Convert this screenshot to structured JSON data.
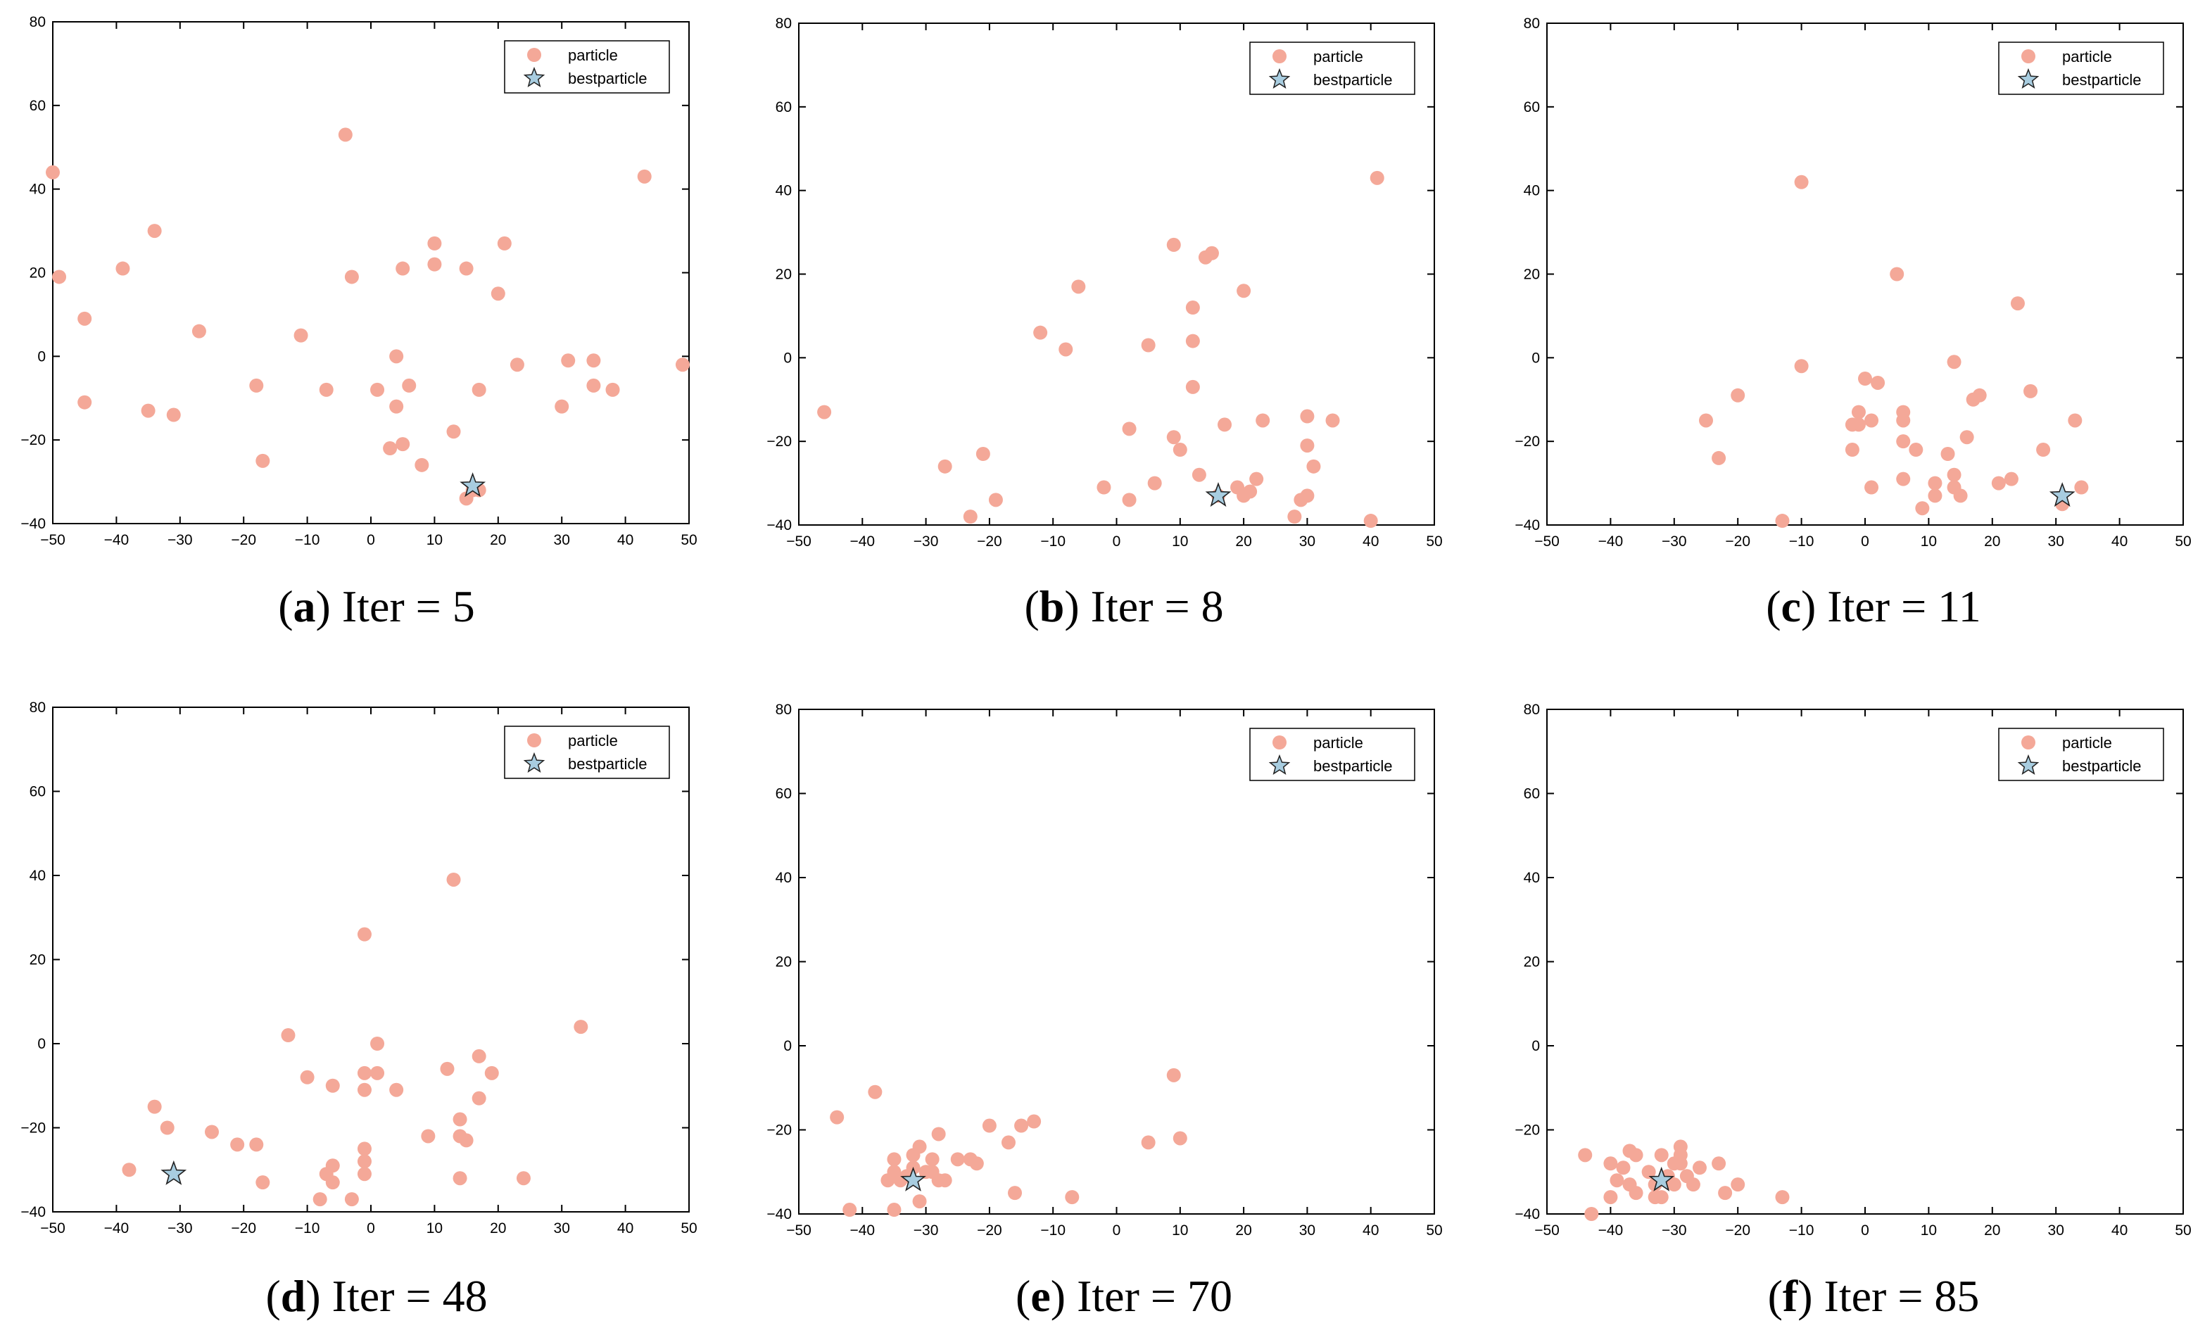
{
  "colors": {
    "particle": "#f4a898",
    "best": "#a8cde0",
    "best_stroke": "#222222",
    "axis": "#000000"
  },
  "legend": {
    "particle": "particle",
    "best": "bestparticle"
  },
  "chart_data": [
    {
      "type": "scatter",
      "panel": "a",
      "title": "Iter = 5",
      "xlim": [
        -50,
        50
      ],
      "ylim": [
        -40,
        80
      ],
      "xticks": [
        "−50",
        "−40",
        "−30",
        "−20",
        "−10",
        "0",
        "10",
        "20",
        "30",
        "40",
        "50"
      ],
      "yticks": [
        "−40",
        "−20",
        "0",
        "20",
        "40",
        "60",
        "80"
      ],
      "series": [
        {
          "name": "particle",
          "points": [
            [
              -50,
              44
            ],
            [
              -49,
              19
            ],
            [
              -45,
              9
            ],
            [
              -45,
              -11
            ],
            [
              -35,
              -13
            ],
            [
              -34,
              30
            ],
            [
              -39,
              21
            ],
            [
              -31,
              -14
            ],
            [
              -27,
              6
            ],
            [
              -18,
              -7
            ],
            [
              -17,
              -25
            ],
            [
              -11,
              5
            ],
            [
              -7,
              -8
            ],
            [
              -4,
              53
            ],
            [
              -3,
              19
            ],
            [
              1,
              -8
            ],
            [
              3,
              -22
            ],
            [
              4,
              0
            ],
            [
              4,
              -12
            ],
            [
              5,
              21
            ],
            [
              5,
              -21
            ],
            [
              6,
              -7
            ],
            [
              8,
              -26
            ],
            [
              10,
              22
            ],
            [
              10,
              27
            ],
            [
              13,
              -18
            ],
            [
              15,
              21
            ],
            [
              15,
              -34
            ],
            [
              16,
              -32
            ],
            [
              17,
              -32
            ],
            [
              17,
              -8
            ],
            [
              20,
              15
            ],
            [
              21,
              27
            ],
            [
              23,
              -2
            ],
            [
              30,
              -12
            ],
            [
              31,
              -1
            ],
            [
              35,
              -1
            ],
            [
              35,
              -7
            ],
            [
              38,
              -8
            ],
            [
              43,
              43
            ],
            [
              49,
              -2
            ]
          ]
        },
        {
          "name": "bestparticle",
          "points": [
            [
              16,
              -31
            ]
          ]
        }
      ]
    },
    {
      "type": "scatter",
      "panel": "b",
      "title": "Iter = 8",
      "xlim": [
        -50,
        50
      ],
      "ylim": [
        -40,
        80
      ],
      "xticks": [
        "−50",
        "−40",
        "−30",
        "−20",
        "−10",
        "0",
        "10",
        "20",
        "30",
        "40",
        "50"
      ],
      "yticks": [
        "−40",
        "−20",
        "0",
        "20",
        "40",
        "60",
        "80"
      ],
      "series": [
        {
          "name": "particle",
          "points": [
            [
              -46,
              -13
            ],
            [
              -27,
              -26
            ],
            [
              -23,
              -38
            ],
            [
              -21,
              -23
            ],
            [
              -19,
              -34
            ],
            [
              -12,
              6
            ],
            [
              -8,
              2
            ],
            [
              -6,
              17
            ],
            [
              -2,
              -31
            ],
            [
              2,
              -34
            ],
            [
              2,
              -17
            ],
            [
              5,
              3
            ],
            [
              6,
              -30
            ],
            [
              9,
              27
            ],
            [
              9,
              -19
            ],
            [
              10,
              -22
            ],
            [
              12,
              12
            ],
            [
              12,
              4
            ],
            [
              12,
              -7
            ],
            [
              13,
              -28
            ],
            [
              14,
              24
            ],
            [
              15,
              25
            ],
            [
              16,
              -33
            ],
            [
              17,
              -16
            ],
            [
              19,
              -31
            ],
            [
              20,
              16
            ],
            [
              20,
              -33
            ],
            [
              21,
              -32
            ],
            [
              22,
              -29
            ],
            [
              23,
              -15
            ],
            [
              28,
              -38
            ],
            [
              29,
              -34
            ],
            [
              30,
              -33
            ],
            [
              30,
              -21
            ],
            [
              30,
              -14
            ],
            [
              31,
              -26
            ],
            [
              34,
              -15
            ],
            [
              40,
              -39
            ],
            [
              41,
              43
            ]
          ]
        },
        {
          "name": "bestparticle",
          "points": [
            [
              16,
              -33
            ]
          ]
        }
      ]
    },
    {
      "type": "scatter",
      "panel": "c",
      "title": "Iter = 11",
      "xlim": [
        -50,
        50
      ],
      "ylim": [
        -40,
        80
      ],
      "xticks": [
        "−50",
        "−40",
        "−30",
        "−20",
        "−10",
        "0",
        "10",
        "20",
        "30",
        "40",
        "50"
      ],
      "yticks": [
        "−40",
        "−20",
        "0",
        "20",
        "40",
        "60",
        "80"
      ],
      "series": [
        {
          "name": "particle",
          "points": [
            [
              -25,
              -15
            ],
            [
              -23,
              -24
            ],
            [
              -20,
              -9
            ],
            [
              -13,
              -39
            ],
            [
              -10,
              42
            ],
            [
              -10,
              -2
            ],
            [
              -2,
              -22
            ],
            [
              -2,
              -16
            ],
            [
              -1,
              -16
            ],
            [
              -1,
              -13
            ],
            [
              0,
              -5
            ],
            [
              1,
              -31
            ],
            [
              1,
              -15
            ],
            [
              2,
              -6
            ],
            [
              5,
              20
            ],
            [
              6,
              -13
            ],
            [
              6,
              -15
            ],
            [
              6,
              -20
            ],
            [
              6,
              -29
            ],
            [
              8,
              -22
            ],
            [
              9,
              -36
            ],
            [
              11,
              -33
            ],
            [
              11,
              -30
            ],
            [
              13,
              -23
            ],
            [
              14,
              -1
            ],
            [
              14,
              -28
            ],
            [
              14,
              -31
            ],
            [
              15,
              -33
            ],
            [
              16,
              -19
            ],
            [
              17,
              -10
            ],
            [
              18,
              -9
            ],
            [
              21,
              -30
            ],
            [
              23,
              -29
            ],
            [
              24,
              13
            ],
            [
              26,
              -8
            ],
            [
              28,
              -22
            ],
            [
              31,
              -35
            ],
            [
              33,
              -15
            ],
            [
              34,
              -31
            ]
          ]
        },
        {
          "name": "bestparticle",
          "points": [
            [
              31,
              -33
            ]
          ]
        }
      ]
    },
    {
      "type": "scatter",
      "panel": "d",
      "title": "Iter = 48",
      "xlim": [
        -50,
        50
      ],
      "ylim": [
        -40,
        80
      ],
      "xticks": [
        "−50",
        "−40",
        "−30",
        "−20",
        "−10",
        "0",
        "10",
        "20",
        "30",
        "40",
        "50"
      ],
      "yticks": [
        "−40",
        "−20",
        "0",
        "20",
        "40",
        "60",
        "80"
      ],
      "series": [
        {
          "name": "particle",
          "points": [
            [
              -38,
              -30
            ],
            [
              -34,
              -15
            ],
            [
              -32,
              -20
            ],
            [
              -25,
              -21
            ],
            [
              -21,
              -24
            ],
            [
              -18,
              -24
            ],
            [
              -17,
              -33
            ],
            [
              -13,
              2
            ],
            [
              -10,
              -8
            ],
            [
              -8,
              -37
            ],
            [
              -7,
              -31
            ],
            [
              -6,
              -33
            ],
            [
              -6,
              -29
            ],
            [
              -6,
              -10
            ],
            [
              -3,
              -37
            ],
            [
              -1,
              -31
            ],
            [
              -1,
              -28
            ],
            [
              -1,
              -25
            ],
            [
              -1,
              -11
            ],
            [
              -1,
              -7
            ],
            [
              -1,
              26
            ],
            [
              1,
              0
            ],
            [
              1,
              -7
            ],
            [
              4,
              -11
            ],
            [
              9,
              -22
            ],
            [
              12,
              -6
            ],
            [
              13,
              39
            ],
            [
              14,
              -32
            ],
            [
              14,
              -22
            ],
            [
              14,
              -18
            ],
            [
              15,
              -23
            ],
            [
              17,
              -3
            ],
            [
              17,
              -13
            ],
            [
              19,
              -7
            ],
            [
              24,
              -32
            ],
            [
              33,
              4
            ]
          ]
        },
        {
          "name": "bestparticle",
          "points": [
            [
              -31,
              -31
            ]
          ]
        }
      ]
    },
    {
      "type": "scatter",
      "panel": "e",
      "title": "Iter = 70",
      "xlim": [
        -50,
        50
      ],
      "ylim": [
        -40,
        80
      ],
      "xticks": [
        "−50",
        "−40",
        "−30",
        "−20",
        "−10",
        "0",
        "10",
        "20",
        "30",
        "40",
        "50"
      ],
      "yticks": [
        "−40",
        "−20",
        "0",
        "20",
        "40",
        "60",
        "80"
      ],
      "series": [
        {
          "name": "particle",
          "points": [
            [
              -44,
              -17
            ],
            [
              -42,
              -39
            ],
            [
              -38,
              -11
            ],
            [
              -36,
              -32
            ],
            [
              -35,
              -30
            ],
            [
              -35,
              -27
            ],
            [
              -35,
              -39
            ],
            [
              -34,
              -32
            ],
            [
              -33,
              -31
            ],
            [
              -32,
              -29
            ],
            [
              -32,
              -26
            ],
            [
              -31,
              -37
            ],
            [
              -31,
              -24
            ],
            [
              -30,
              -30
            ],
            [
              -29,
              -27
            ],
            [
              -29,
              -30
            ],
            [
              -28,
              -21
            ],
            [
              -28,
              -32
            ],
            [
              -27,
              -32
            ],
            [
              -25,
              -27
            ],
            [
              -23,
              -27
            ],
            [
              -22,
              -28
            ],
            [
              -20,
              -19
            ],
            [
              -17,
              -23
            ],
            [
              -16,
              -35
            ],
            [
              -15,
              -19
            ],
            [
              -13,
              -18
            ],
            [
              -7,
              -36
            ],
            [
              5,
              -23
            ],
            [
              9,
              -7
            ],
            [
              10,
              -22
            ]
          ]
        },
        {
          "name": "bestparticle",
          "points": [
            [
              -32,
              -32
            ]
          ]
        }
      ]
    },
    {
      "type": "scatter",
      "panel": "f",
      "title": "Iter = 85",
      "xlim": [
        -50,
        50
      ],
      "ylim": [
        -40,
        80
      ],
      "xticks": [
        "−50",
        "−40",
        "−30",
        "−20",
        "−10",
        "0",
        "10",
        "20",
        "30",
        "40",
        "50"
      ],
      "yticks": [
        "−40",
        "−20",
        "0",
        "20",
        "40",
        "60",
        "80"
      ],
      "series": [
        {
          "name": "particle",
          "points": [
            [
              -44,
              -26
            ],
            [
              -43,
              -40
            ],
            [
              -40,
              -28
            ],
            [
              -40,
              -36
            ],
            [
              -39,
              -32
            ],
            [
              -38,
              -29
            ],
            [
              -37,
              -25
            ],
            [
              -37,
              -33
            ],
            [
              -36,
              -26
            ],
            [
              -36,
              -35
            ],
            [
              -34,
              -30
            ],
            [
              -33,
              -33
            ],
            [
              -33,
              -36
            ],
            [
              -32,
              -26
            ],
            [
              -32,
              -36
            ],
            [
              -31,
              -31
            ],
            [
              -30,
              -28
            ],
            [
              -30,
              -33
            ],
            [
              -29,
              -24
            ],
            [
              -29,
              -26
            ],
            [
              -29,
              -28
            ],
            [
              -28,
              -31
            ],
            [
              -27,
              -33
            ],
            [
              -26,
              -29
            ],
            [
              -23,
              -28
            ],
            [
              -22,
              -35
            ],
            [
              -20,
              -33
            ],
            [
              -13,
              -36
            ]
          ]
        },
        {
          "name": "bestparticle",
          "points": [
            [
              -32,
              -32
            ]
          ]
        }
      ]
    }
  ]
}
